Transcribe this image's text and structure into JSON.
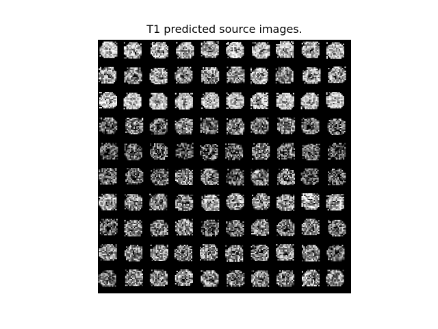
{
  "figure": {
    "title": "T1 predicted source images."
  },
  "mosaic": {
    "rows": 10,
    "cols": 10,
    "background_color": "#000000",
    "tile_colormap": "grayscale"
  }
}
